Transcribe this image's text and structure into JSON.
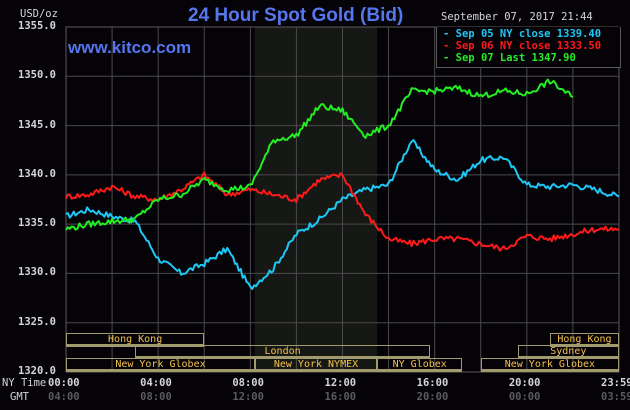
{
  "header": {
    "title": "24 Hour Spot Gold (Bid)",
    "site": "www.kitco.com",
    "unit": "USD/oz",
    "datetime": "September 07, 2017 21:44"
  },
  "legend": [
    {
      "label": "Sep 05 NY close 1339.40",
      "color": "#1ec8f5"
    },
    {
      "label": "Sep 06 NY close 1333.50",
      "color": "#ff1a1a"
    },
    {
      "label": "Sep 07 Last 1347.90",
      "color": "#22ee22"
    }
  ],
  "axis": {
    "y_ticks": [
      "1355.0",
      "1350.0",
      "1345.0",
      "1340.0",
      "1335.0",
      "1330.0",
      "1325.0",
      "1320.0"
    ],
    "ny_time_label": "NY Time",
    "gmt_label": "GMT",
    "ny_ticks": [
      "00:00",
      "04:00",
      "08:00",
      "12:00",
      "16:00",
      "20:00",
      "23:59"
    ],
    "gmt_ticks": [
      "04:00",
      "08:00",
      "12:00",
      "16:00",
      "20:00",
      "00:00",
      "03:59"
    ]
  },
  "sessions": [
    {
      "label": "Hong Kong",
      "row": 0,
      "start": 0,
      "end": 6
    },
    {
      "label": "London",
      "row": 1,
      "start": 3,
      "end": 15.8
    },
    {
      "label": "New York Globex",
      "row": 2,
      "start": 0,
      "end": 8.2
    },
    {
      "label": "New York NYMEX",
      "row": 2,
      "start": 8.2,
      "end": 13.5
    },
    {
      "label": "NY Globex",
      "row": 2,
      "start": 13.5,
      "end": 17.2
    },
    {
      "label": "New York Globex",
      "row": 2,
      "start": 18,
      "end": 24
    },
    {
      "label": "Sydney",
      "row": 1,
      "start": 19.6,
      "end": 24
    },
    {
      "label": "Hong Kong",
      "row": 0,
      "start": 21,
      "end": 24
    }
  ],
  "chart_data": {
    "type": "line",
    "title": "24 Hour Spot Gold (Bid)",
    "xlabel": "NY Time / GMT",
    "ylabel": "USD/oz",
    "ylim": [
      1320,
      1355
    ],
    "xlim_hours": [
      0,
      24
    ],
    "grid": true,
    "highlight_hours": [
      8.2,
      13.5
    ],
    "x_hours": [
      0,
      1,
      2,
      3,
      4,
      5,
      6,
      7,
      8,
      9,
      10,
      11,
      12,
      13,
      14,
      15,
      16,
      17,
      18,
      19,
      20,
      21,
      22,
      23,
      24
    ],
    "series": [
      {
        "name": "Sep 05 NY close 1339.40",
        "color": "#1ec8f5",
        "values": [
          1335.8,
          1336.5,
          1335.8,
          1335.3,
          1331.5,
          1330.0,
          1331.0,
          1332.5,
          1328.5,
          1330.5,
          1334.0,
          1335.5,
          1337.5,
          1338.5,
          1339.0,
          1343.5,
          1340.5,
          1339.5,
          1341.5,
          1341.8,
          1339.0,
          1338.8,
          1339.0,
          1338.5,
          1337.8
        ]
      },
      {
        "name": "Sep 06 NY close 1333.50",
        "color": "#ff1a1a",
        "values": [
          1337.8,
          1338.0,
          1338.8,
          1337.8,
          1337.5,
          1338.5,
          1340.0,
          1338.0,
          1338.5,
          1338.0,
          1337.5,
          1339.5,
          1340.0,
          1336.0,
          1333.5,
          1333.0,
          1333.5,
          1333.5,
          1333.0,
          1332.5,
          1333.8,
          1333.5,
          1334.0,
          1334.5,
          1334.5
        ]
      },
      {
        "name": "Sep 07 Last 1347.90",
        "color": "#22ee22",
        "values": [
          1334.5,
          1335.0,
          1335.3,
          1335.5,
          1337.5,
          1338.0,
          1339.5,
          1338.5,
          1338.8,
          1343.5,
          1344.0,
          1347.0,
          1346.5,
          1344.0,
          1345.0,
          1348.5,
          1348.5,
          1348.8,
          1348.0,
          1348.5,
          1348.2,
          1349.5,
          1347.9
        ]
      }
    ]
  }
}
